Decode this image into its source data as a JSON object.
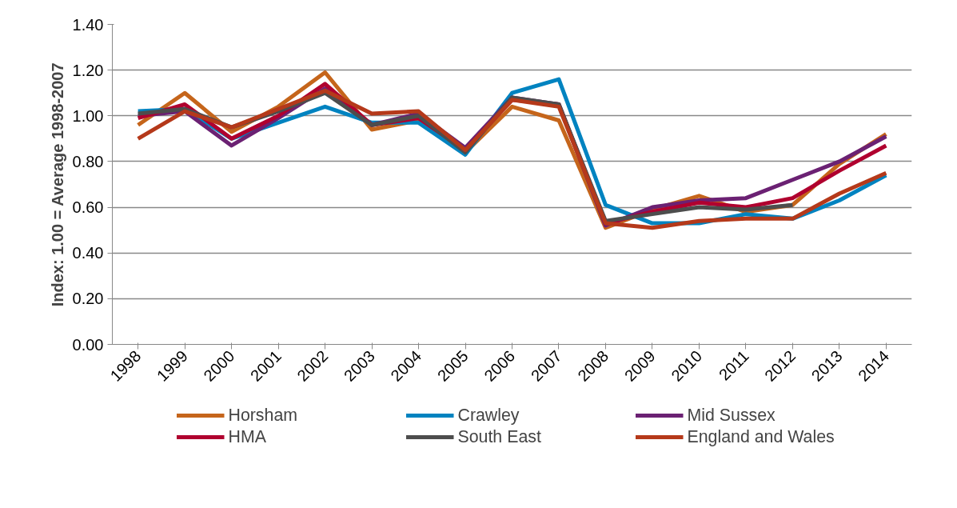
{
  "chart_data": {
    "type": "line",
    "ylabel": "Index: 1.00 = Average 1998-2007",
    "categories": [
      "1998",
      "1999",
      "2000",
      "2001",
      "2002",
      "2003",
      "2004",
      "2005",
      "2006",
      "2007",
      "2008",
      "2009",
      "2010",
      "2011",
      "2012",
      "2013",
      "2014"
    ],
    "series": [
      {
        "name": "Horsham",
        "color": "#c5651b",
        "values": [
          0.96,
          1.1,
          0.93,
          1.04,
          1.19,
          0.94,
          0.98,
          0.84,
          1.04,
          0.98,
          0.51,
          0.59,
          0.65,
          0.58,
          0.61,
          0.79,
          0.92
        ]
      },
      {
        "name": "Crawley",
        "color": "#0083c0",
        "values": [
          1.02,
          1.03,
          0.9,
          0.97,
          1.04,
          0.97,
          0.97,
          0.83,
          1.1,
          1.16,
          0.61,
          0.53,
          0.53,
          0.57,
          0.55,
          0.63,
          0.74
        ]
      },
      {
        "name": "Mid Sussex",
        "color": "#6b2173",
        "values": [
          1.0,
          1.02,
          0.87,
          0.99,
          1.12,
          0.96,
          1.01,
          0.86,
          1.08,
          1.05,
          0.52,
          0.6,
          0.63,
          0.64,
          0.72,
          0.8,
          0.91
        ]
      },
      {
        "name": "HMA",
        "color": "#b0002f",
        "values": [
          0.99,
          1.05,
          0.9,
          1.0,
          1.14,
          0.96,
          0.99,
          0.85,
          1.07,
          1.05,
          0.53,
          0.58,
          0.62,
          0.6,
          0.64,
          0.76,
          0.87
        ]
      },
      {
        "name": "South East",
        "color": "#4d4d4d",
        "values": [
          1.01,
          1.03,
          0.95,
          1.02,
          1.1,
          0.96,
          1.0,
          0.84,
          1.08,
          1.05,
          0.54,
          0.57,
          0.6,
          0.59,
          0.61,
          null,
          null
        ]
      },
      {
        "name": "England and Wales",
        "color": "#b5391a",
        "values": [
          0.9,
          1.02,
          0.95,
          1.03,
          1.11,
          1.01,
          1.02,
          0.85,
          1.07,
          1.04,
          0.53,
          0.51,
          0.54,
          0.55,
          0.55,
          0.66,
          0.75
        ]
      }
    ],
    "ylim": [
      0,
      1.4
    ],
    "yticks": [
      {
        "value": 0,
        "label": "0.00"
      },
      {
        "value": 0.2,
        "label": "0.20"
      },
      {
        "value": 0.4,
        "label": "0.40"
      },
      {
        "value": 0.6,
        "label": "0.60"
      },
      {
        "value": 0.8,
        "label": "0.80"
      },
      {
        "value": 1.0,
        "label": "1.00"
      },
      {
        "value": 1.2,
        "label": "1.20"
      },
      {
        "value": 1.4,
        "label": "1.40"
      }
    ],
    "grid": "y",
    "legend": "bottom",
    "marker": "none",
    "line_style": "solid"
  }
}
